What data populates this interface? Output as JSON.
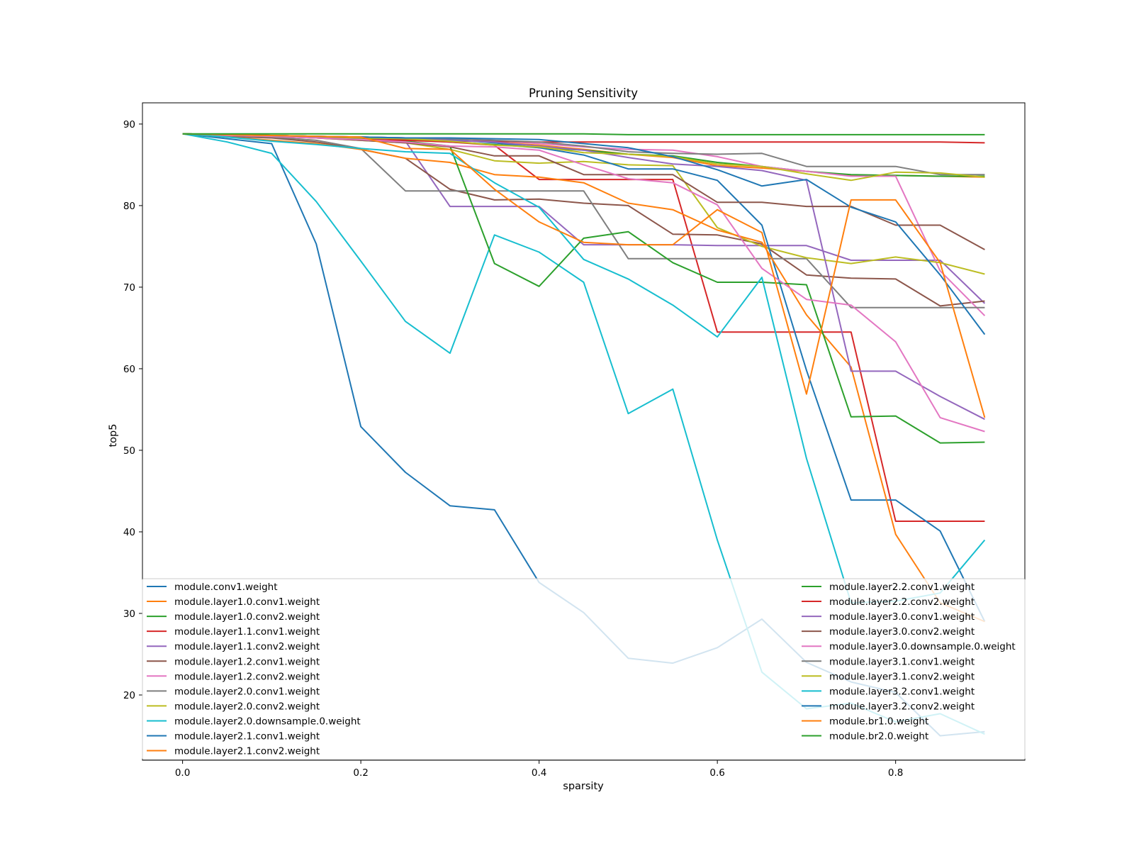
{
  "chart_data": {
    "type": "line",
    "title": "Pruning Sensitivity",
    "xlabel": "sparsity",
    "ylabel": "top5",
    "xlim": [
      -0.045,
      0.945
    ],
    "ylim": [
      12.0,
      92.6
    ],
    "xticks": [
      0.0,
      0.2,
      0.4,
      0.6,
      0.8
    ],
    "xtick_labels": [
      "0.0",
      "0.2",
      "0.4",
      "0.6",
      "0.8"
    ],
    "yticks": [
      20,
      30,
      40,
      50,
      60,
      70,
      80,
      90
    ],
    "ytick_labels": [
      "20",
      "30",
      "40",
      "50",
      "60",
      "70",
      "80",
      "90"
    ],
    "grid": false,
    "legend": {
      "placement": "bottom",
      "columns": 2
    },
    "x": [
      0.0,
      0.05,
      0.1,
      0.15,
      0.2,
      0.25,
      0.3,
      0.35,
      0.4,
      0.45,
      0.5,
      0.55,
      0.6,
      0.65,
      0.7,
      0.75,
      0.8,
      0.85,
      0.9
    ],
    "series": [
      {
        "name": "module.conv1.weight",
        "color": "#1f77b4",
        "values": [
          88.8,
          88.2,
          87.6,
          75.3,
          52.9,
          47.3,
          43.2,
          42.7,
          33.8,
          30.1,
          24.5,
          23.9,
          25.8,
          29.3,
          24.0,
          21.6,
          20.3,
          15.0,
          15.5
        ]
      },
      {
        "name": "module.layer1.0.conv1.weight",
        "color": "#ff7f0e",
        "values": [
          88.8,
          88.6,
          88.5,
          88.4,
          88.3,
          88.2,
          88.0,
          87.8,
          87.4,
          86.9,
          86.3,
          85.9,
          84.9,
          84.6,
          84.2,
          83.7,
          83.7,
          83.6,
          83.5
        ]
      },
      {
        "name": "module.layer1.0.conv2.weight",
        "color": "#2ca02c",
        "values": [
          88.8,
          88.7,
          88.6,
          88.5,
          88.3,
          88.1,
          87.8,
          87.5,
          87.1,
          86.8,
          86.3,
          86.1,
          85.3,
          84.8,
          84.2,
          83.8,
          83.7,
          83.6,
          83.6
        ]
      },
      {
        "name": "module.layer1.1.conv1.weight",
        "color": "#d62728",
        "values": [
          88.8,
          88.7,
          88.6,
          88.4,
          88.2,
          88.0,
          87.8,
          87.4,
          83.2,
          83.2,
          83.2,
          83.2,
          64.5,
          64.5,
          64.5,
          64.5,
          41.3,
          41.3,
          41.3
        ]
      },
      {
        "name": "module.layer1.1.conv2.weight",
        "color": "#9467bd",
        "values": [
          88.8,
          88.7,
          88.6,
          88.5,
          88.3,
          87.9,
          79.9,
          79.9,
          79.9,
          75.2,
          75.2,
          75.2,
          75.1,
          75.1,
          75.1,
          73.3,
          73.3,
          73.3,
          68.0
        ]
      },
      {
        "name": "module.layer1.2.conv1.weight",
        "color": "#8c564b",
        "values": [
          88.8,
          88.5,
          88.3,
          87.8,
          86.9,
          85.8,
          82.0,
          80.7,
          80.8,
          80.3,
          80.0,
          76.5,
          76.4,
          75.3,
          71.5,
          71.1,
          71.0,
          67.7,
          68.3
        ]
      },
      {
        "name": "module.layer1.2.conv2.weight",
        "color": "#e377c2",
        "values": [
          88.8,
          88.7,
          88.6,
          88.5,
          88.4,
          88.3,
          88.2,
          88.0,
          87.6,
          87.2,
          86.9,
          86.8,
          86.0,
          84.8,
          84.2,
          83.6,
          83.6,
          72.0,
          66.5
        ]
      },
      {
        "name": "module.layer2.0.conv1.weight",
        "color": "#7f7f7f",
        "values": [
          88.8,
          88.6,
          88.4,
          88.0,
          87.0,
          81.8,
          81.8,
          81.8,
          81.8,
          81.8,
          73.5,
          73.5,
          73.5,
          73.5,
          73.5,
          67.5,
          67.5,
          67.5,
          67.5
        ]
      },
      {
        "name": "module.layer2.0.conv2.weight",
        "color": "#bcbd22",
        "values": [
          88.8,
          88.6,
          88.5,
          88.3,
          88.0,
          87.7,
          86.9,
          85.5,
          85.2,
          85.4,
          85.0,
          84.9,
          77.3,
          75.0,
          73.6,
          72.9,
          73.7,
          73.0,
          71.6
        ]
      },
      {
        "name": "module.layer2.0.downsample.0.weight",
        "color": "#17becf",
        "values": [
          88.8,
          87.8,
          86.4,
          80.5,
          73.2,
          65.8,
          61.9,
          76.4,
          74.3,
          70.6,
          54.5,
          57.5,
          39.0,
          22.8,
          18.3,
          19.0,
          16.7,
          17.7,
          15.2
        ]
      },
      {
        "name": "module.layer2.1.conv1.weight",
        "color": "#1f77b4",
        "values": [
          88.8,
          88.7,
          88.6,
          88.5,
          88.4,
          88.3,
          88.1,
          87.7,
          87.1,
          86.2,
          84.5,
          84.5,
          83.1,
          77.6,
          59.8,
          43.9,
          43.9,
          40.1,
          29.0
        ]
      },
      {
        "name": "module.layer2.1.conv2.weight",
        "color": "#ff7f0e",
        "values": [
          88.8,
          88.4,
          88.0,
          87.6,
          86.9,
          85.8,
          85.3,
          83.8,
          83.5,
          82.8,
          80.3,
          79.5,
          77.0,
          75.5,
          66.6,
          60.2,
          39.7,
          31.3,
          29.0
        ]
      },
      {
        "name": "module.layer2.2.conv1.weight",
        "color": "#2ca02c",
        "values": [
          88.8,
          88.7,
          88.6,
          88.4,
          88.2,
          87.9,
          87.3,
          72.9,
          70.1,
          76.0,
          76.8,
          73.0,
          70.6,
          70.6,
          70.3,
          54.1,
          54.2,
          50.9,
          51.0
        ]
      },
      {
        "name": "module.layer2.2.conv2.weight",
        "color": "#d62728",
        "values": [
          88.8,
          88.6,
          88.5,
          88.3,
          88.1,
          88.0,
          87.9,
          87.9,
          87.8,
          87.8,
          87.8,
          87.8,
          87.8,
          87.8,
          87.8,
          87.8,
          87.8,
          87.8,
          87.7
        ]
      },
      {
        "name": "module.layer3.0.conv1.weight",
        "color": "#9467bd",
        "values": [
          88.8,
          88.7,
          88.6,
          88.5,
          88.4,
          88.3,
          88.0,
          87.8,
          87.3,
          86.8,
          85.9,
          85.1,
          84.8,
          84.3,
          83.1,
          59.7,
          59.7,
          56.6,
          53.8
        ]
      },
      {
        "name": "module.layer3.0.conv2.weight",
        "color": "#8c564b",
        "values": [
          88.8,
          88.7,
          88.5,
          88.3,
          88.0,
          87.7,
          87.2,
          86.1,
          86.1,
          83.8,
          83.8,
          83.8,
          80.4,
          80.4,
          79.9,
          79.9,
          77.6,
          77.6,
          74.6
        ]
      },
      {
        "name": "module.layer3.0.downsample.0.weight",
        "color": "#e377c2",
        "values": [
          88.8,
          88.6,
          88.5,
          88.3,
          88.1,
          87.8,
          87.3,
          87.2,
          86.8,
          85.0,
          83.3,
          82.8,
          80.1,
          72.3,
          68.5,
          67.8,
          63.3,
          54.0,
          52.3
        ]
      },
      {
        "name": "module.layer3.1.conv1.weight",
        "color": "#7f7f7f",
        "values": [
          88.8,
          88.7,
          88.6,
          88.5,
          88.4,
          88.3,
          88.2,
          88.0,
          87.8,
          87.3,
          86.6,
          86.4,
          86.3,
          86.4,
          84.8,
          84.8,
          84.8,
          83.8,
          83.8
        ]
      },
      {
        "name": "module.layer3.1.conv2.weight",
        "color": "#bcbd22",
        "values": [
          88.8,
          88.7,
          88.6,
          88.5,
          88.3,
          88.2,
          87.9,
          87.4,
          87.2,
          86.5,
          86.3,
          86.0,
          85.1,
          84.8,
          83.9,
          83.1,
          84.1,
          84.0,
          83.5
        ]
      },
      {
        "name": "module.layer3.2.conv1.weight",
        "color": "#17becf",
        "values": [
          88.8,
          88.4,
          87.9,
          87.5,
          87.0,
          86.6,
          86.4,
          82.8,
          79.8,
          73.4,
          71.0,
          67.8,
          63.9,
          71.2,
          49.0,
          31.3,
          31.5,
          32.5,
          39.0
        ]
      },
      {
        "name": "module.layer3.2.conv2.weight",
        "color": "#1f77b4",
        "values": [
          88.8,
          88.7,
          88.6,
          88.5,
          88.4,
          88.3,
          88.3,
          88.2,
          88.1,
          87.6,
          87.1,
          86.0,
          84.4,
          82.4,
          83.2,
          79.8,
          78.0,
          71.5,
          64.2
        ]
      },
      {
        "name": "module.br1.0.weight",
        "color": "#ff7f0e",
        "values": [
          88.8,
          88.7,
          88.6,
          88.5,
          88.4,
          87.0,
          86.9,
          82.0,
          78.0,
          75.5,
          75.2,
          75.2,
          79.5,
          76.7,
          56.9,
          80.7,
          80.7,
          73.0,
          54.0
        ]
      },
      {
        "name": "module.br2.0.weight",
        "color": "#2ca02c",
        "values": [
          88.8,
          88.8,
          88.8,
          88.8,
          88.8,
          88.8,
          88.8,
          88.8,
          88.8,
          88.8,
          88.7,
          88.7,
          88.7,
          88.7,
          88.7,
          88.7,
          88.7,
          88.7,
          88.7
        ]
      }
    ]
  }
}
